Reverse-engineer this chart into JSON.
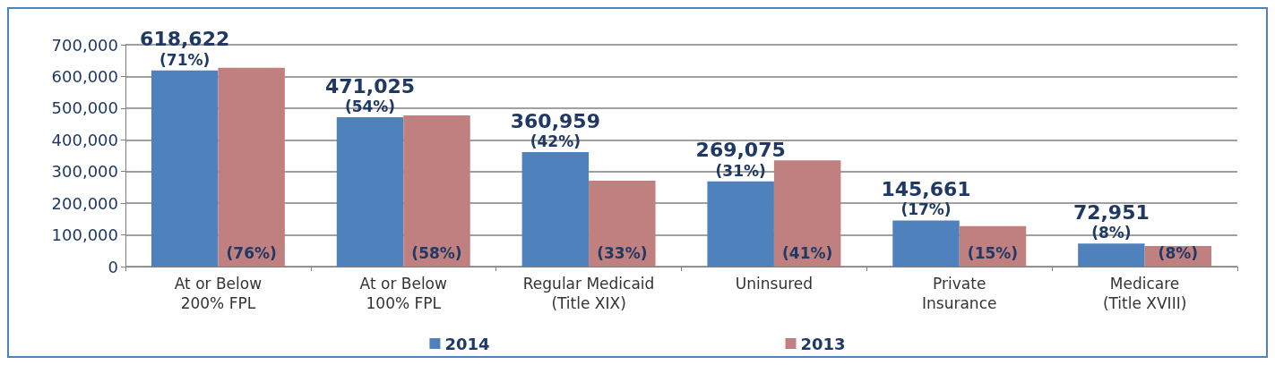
{
  "chart_data": {
    "type": "bar",
    "categories": [
      "At or Below\n200% FPL",
      "At or Below\n100% FPL",
      "Regular Medicaid\n(Title XIX)",
      "Uninsured",
      "Private\nInsurance",
      "Medicare\n(Title XVIII)"
    ],
    "series": [
      {
        "name": "2014",
        "color": "#4f81bd",
        "values": [
          618622,
          471025,
          360959,
          269075,
          145661,
          72951
        ],
        "value_labels": [
          "618,622\n(71%)",
          "471,025\n(54%)",
          "360,959\n(42%)",
          "269,075\n(31%)",
          "145,661\n(17%)",
          "72,951\n(8%)"
        ]
      },
      {
        "name": "2013",
        "color": "#c0807f",
        "values": [
          627000,
          477000,
          271000,
          335000,
          128000,
          65000
        ]
      }
    ],
    "annotations": [
      {
        "text": "(76%)",
        "x": "At or Below\n200% FPL",
        "y": 0
      },
      {
        "text": "(58%)",
        "x": "At or Below\n100% FPL",
        "y": 0
      },
      {
        "text": "(33%)",
        "x": "Regular Medicaid\n(Title XIX)",
        "y": 0
      },
      {
        "text": "(41%)",
        "x": "Uninsured",
        "y": 0
      },
      {
        "text": "(15%)",
        "x": "Private\nInsurance",
        "y": 0
      },
      {
        "text": "(8%)",
        "x": "Medicare\n(Title XVIII)",
        "y": 0
      }
    ],
    "ylim": [
      0,
      700000
    ],
    "yticks": [
      {
        "value": 0,
        "label": "0"
      },
      {
        "value": 100000,
        "label": "100,000"
      },
      {
        "value": 200000,
        "label": "200,000"
      },
      {
        "value": 300000,
        "label": "300,000"
      },
      {
        "value": 400000,
        "label": "400,000"
      },
      {
        "value": 500000,
        "label": "500,000"
      },
      {
        "value": 600000,
        "label": "600,000"
      },
      {
        "value": 700000,
        "label": "700,000"
      }
    ],
    "grid": "y",
    "legend": "bottom"
  }
}
